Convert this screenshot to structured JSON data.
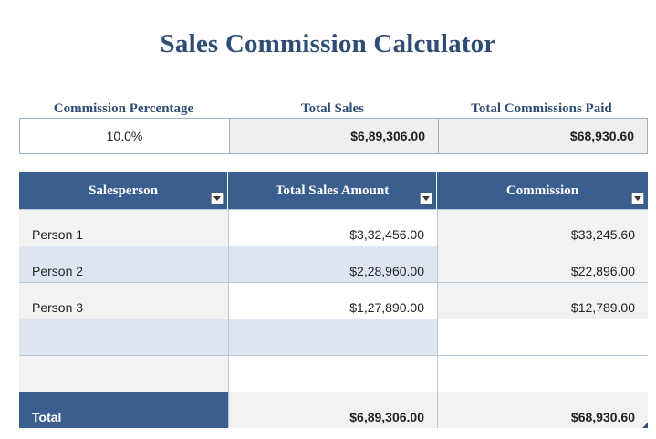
{
  "title": "Sales Commission Calculator",
  "summary": {
    "headers": [
      "Commission Percentage",
      "Total Sales",
      "Total Commissions Paid"
    ],
    "values": [
      "10.0%",
      "$6,89,306.00",
      "$68,930.60"
    ]
  },
  "table": {
    "columns": [
      "Salesperson",
      "Total Sales Amount",
      "Commission"
    ],
    "rows": [
      [
        "Person 1",
        "$3,32,456.00",
        "$33,245.60"
      ],
      [
        "Person 2",
        "$2,28,960.00",
        "$22,896.00"
      ],
      [
        "Person 3",
        "$1,27,890.00",
        "$12,789.00"
      ],
      [
        "",
        "",
        ""
      ],
      [
        "",
        "",
        ""
      ]
    ],
    "total": [
      "Total",
      "$6,89,306.00",
      "$68,930.60"
    ]
  },
  "colors": {
    "title": "#2f4d74",
    "header_bg": "#3a5f8f",
    "band": "#dde6f0",
    "grid": "#b9cadb"
  },
  "icons": {
    "filter": "dropdown-arrow-icon"
  }
}
